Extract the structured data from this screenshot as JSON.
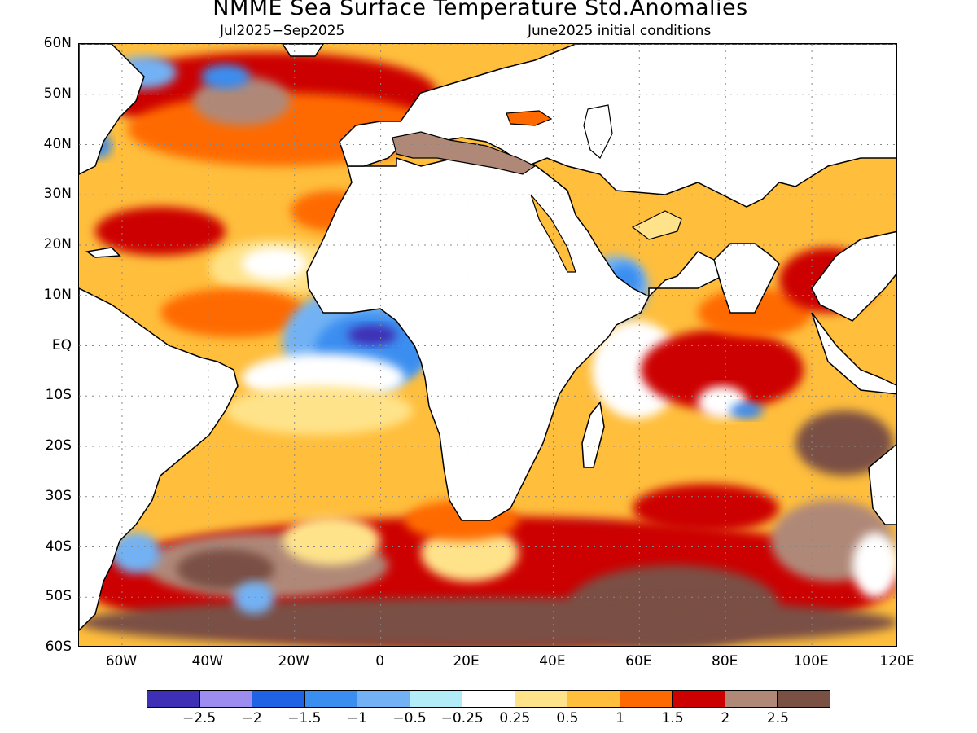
{
  "header": {
    "title": "NMME Sea Surface Temperature Std.Anomalies",
    "period": "Jul2025−Sep2025",
    "initial_conditions": "June2025 initial conditions"
  },
  "map": {
    "lon_range": [
      -70,
      120
    ],
    "lat_range": [
      -60,
      60
    ],
    "lat_labels": [
      "60N",
      "50N",
      "40N",
      "30N",
      "20N",
      "10N",
      "EQ",
      "10S",
      "20S",
      "30S",
      "40S",
      "50S",
      "60S"
    ],
    "lon_labels": [
      "60W",
      "40W",
      "20W",
      "0",
      "20E",
      "40E",
      "60E",
      "80E",
      "100E",
      "120E"
    ],
    "grid_style": "dotted"
  },
  "colorbar": {
    "colors": [
      "#3f2fb4",
      "#9d8df0",
      "#1f62e6",
      "#3a8ef0",
      "#72b2f4",
      "#b2ecf8",
      "#ffffff",
      "#ffe38a",
      "#ffbe3c",
      "#ff6a00",
      "#cc0000",
      "#b08878",
      "#7a5045"
    ],
    "labels": [
      "−2.5",
      "−2",
      "−1.5",
      "−1",
      "−0.5",
      "−0.25",
      "0.25",
      "0.5",
      "1",
      "1.5",
      "2",
      "2.5"
    ]
  }
}
